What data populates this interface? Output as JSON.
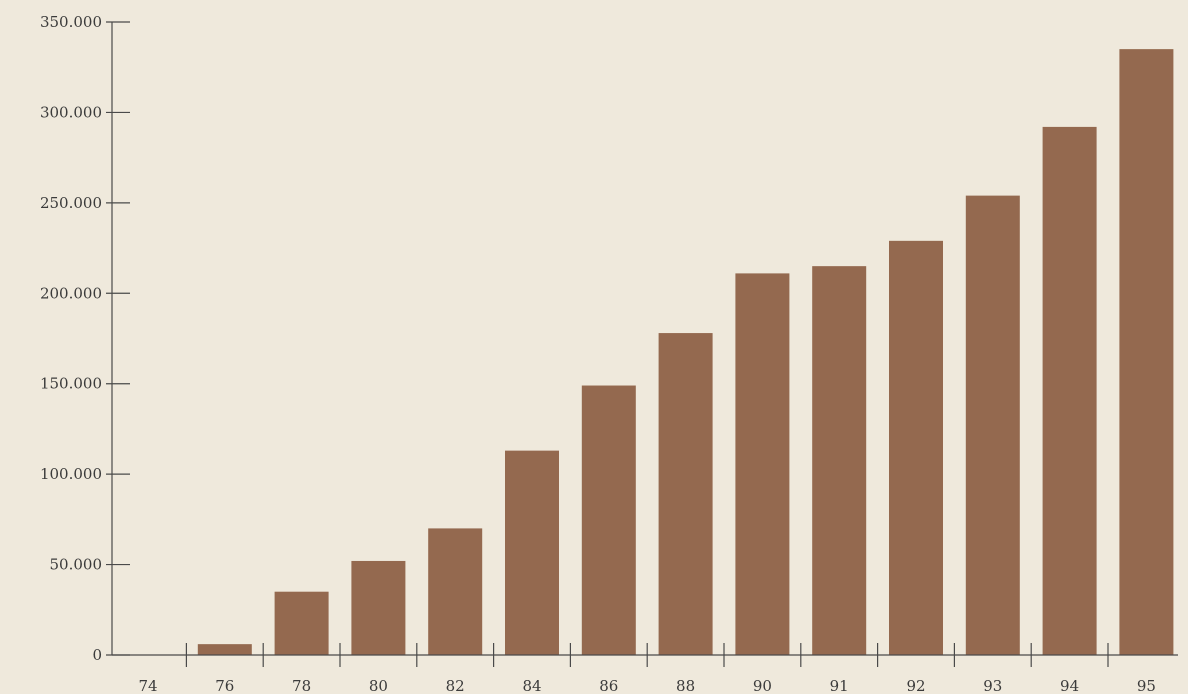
{
  "chart_data": {
    "type": "bar",
    "categories": [
      "74",
      "76",
      "78",
      "80",
      "82",
      "84",
      "86",
      "88",
      "90",
      "91",
      "92",
      "93",
      "94",
      "95"
    ],
    "values": [
      0,
      6000,
      35000,
      52000,
      70000,
      113000,
      149000,
      178000,
      211000,
      215000,
      229000,
      254000,
      292000,
      335000
    ],
    "y_ticks": [
      "0",
      "50.000",
      "100.000",
      "150.000",
      "200.000",
      "250.000",
      "300.000",
      "350.000"
    ],
    "ylim": [
      0,
      350000
    ],
    "title": "",
    "xlabel": "",
    "ylabel": "",
    "grid": false,
    "colors": {
      "bar": "#94694f",
      "axis": "#4a4a4a",
      "background": "#efe9dc"
    }
  }
}
